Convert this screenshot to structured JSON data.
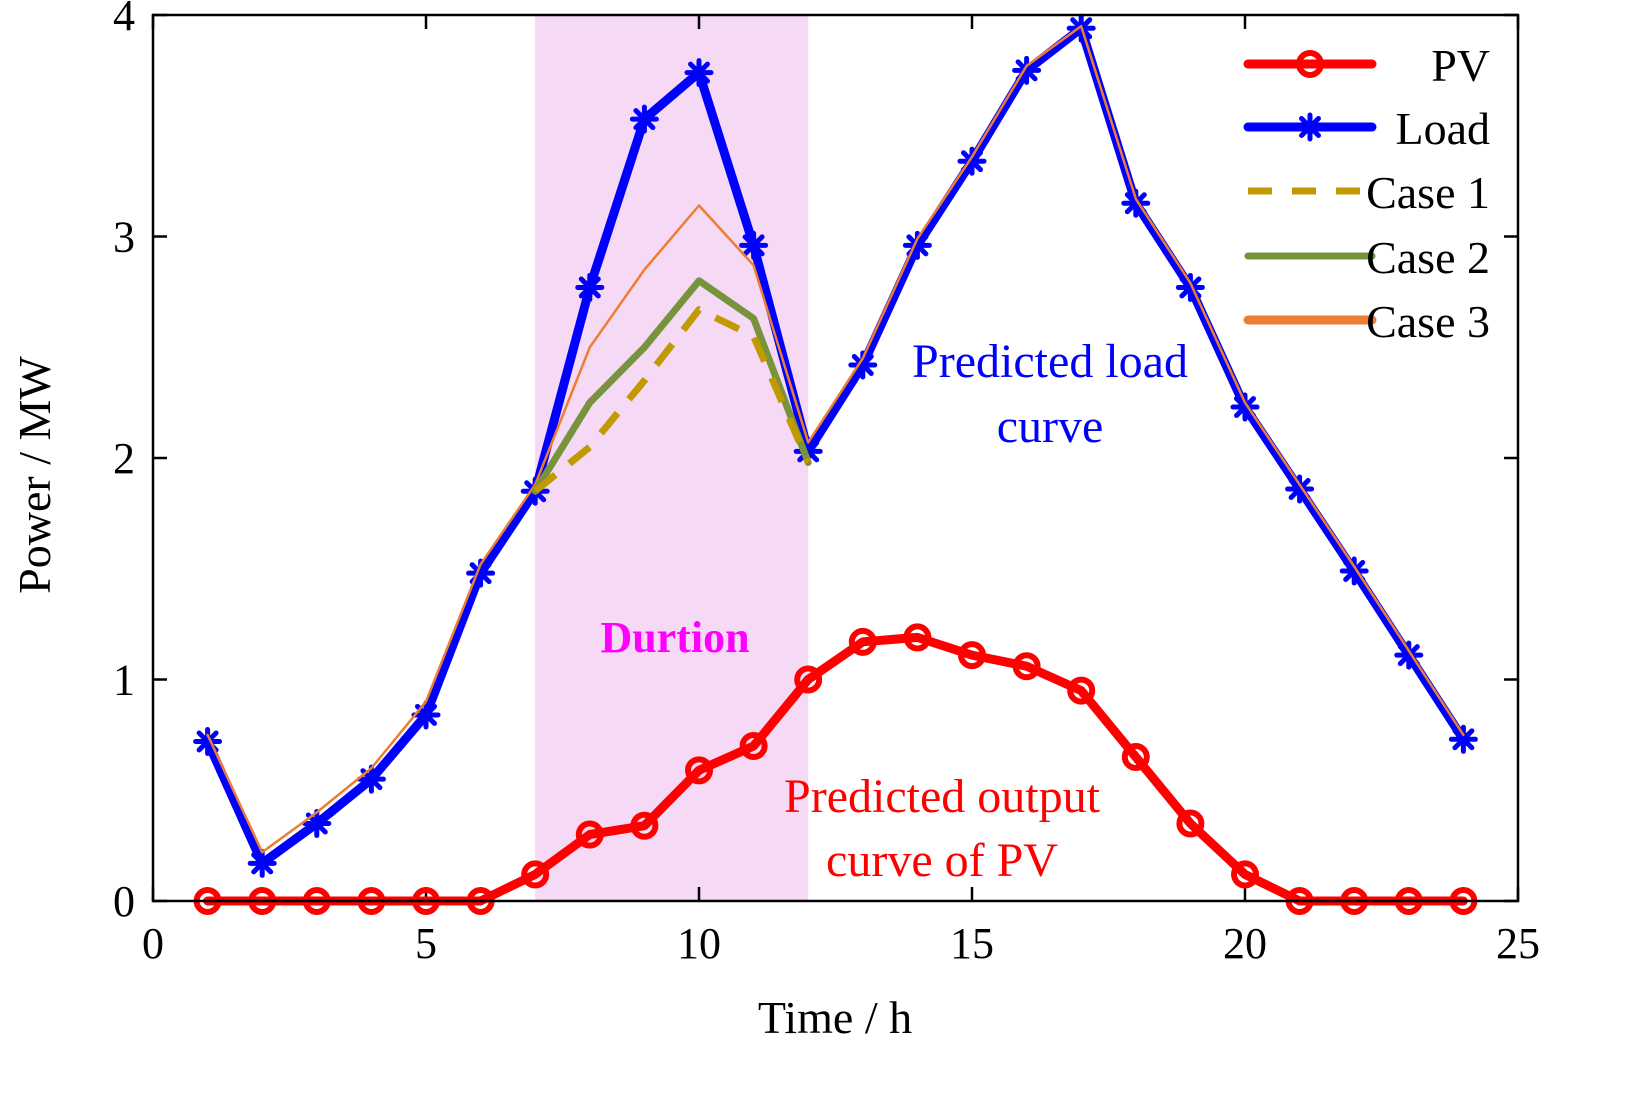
{
  "chart_data": {
    "type": "line",
    "xlabel": "Time / h",
    "ylabel": "Power / MW",
    "xlim": [
      0,
      25
    ],
    "ylim": [
      0,
      4
    ],
    "xticks": [
      0,
      5,
      10,
      15,
      20,
      25
    ],
    "yticks": [
      0,
      1,
      2,
      3,
      4
    ],
    "shaded_region": {
      "x_start": 7,
      "x_end": 12,
      "label": "Durtion",
      "color": "#f5d9f5",
      "label_color": "#ff00ff"
    },
    "legend_position": "top-right",
    "series": [
      {
        "name": "PV",
        "color": "#ff0000",
        "style": "solid",
        "marker": "circle",
        "x": [
          1,
          2,
          3,
          4,
          5,
          6,
          7,
          8,
          9,
          10,
          11,
          12,
          13,
          14,
          15,
          16,
          17,
          18,
          19,
          20,
          21,
          22,
          23,
          24
        ],
        "values": [
          0,
          0,
          0,
          0,
          0,
          0,
          0.12,
          0.3,
          0.34,
          0.59,
          0.7,
          1.0,
          1.17,
          1.19,
          1.11,
          1.06,
          0.95,
          0.65,
          0.35,
          0.12,
          0,
          0,
          0,
          0
        ]
      },
      {
        "name": "Load",
        "color": "#0000ff",
        "style": "solid",
        "marker": "asterisk",
        "x": [
          1,
          2,
          3,
          4,
          5,
          6,
          7,
          8,
          9,
          10,
          11,
          12,
          13,
          14,
          15,
          16,
          17,
          18,
          19,
          20,
          21,
          22,
          23,
          24
        ],
        "values": [
          0.72,
          0.17,
          0.35,
          0.55,
          0.84,
          1.48,
          1.85,
          2.77,
          3.53,
          3.74,
          2.96,
          2.03,
          2.42,
          2.96,
          3.34,
          3.75,
          3.94,
          3.15,
          2.77,
          2.23,
          1.86,
          1.49,
          1.11,
          0.73
        ]
      },
      {
        "name": "Case 1",
        "color": "#c09a00",
        "style": "dashed",
        "marker": "none",
        "x": [
          7,
          8,
          9,
          10,
          11,
          12
        ],
        "values": [
          1.85,
          2.05,
          2.35,
          2.67,
          2.55,
          1.98
        ]
      },
      {
        "name": "Case 2",
        "color": "#77933c",
        "style": "solid",
        "marker": "none",
        "x": [
          7,
          8,
          9,
          10,
          11,
          12
        ],
        "values": [
          1.85,
          2.25,
          2.5,
          2.8,
          2.63,
          1.98
        ]
      },
      {
        "name": "Case 3",
        "color": "#ed7d31",
        "style": "solid",
        "marker": "none",
        "x": [
          1,
          2,
          3,
          4,
          5,
          6,
          7,
          8,
          9,
          10,
          11,
          12,
          13,
          14,
          15,
          16,
          17,
          18,
          19,
          20,
          21,
          22,
          23,
          24
        ],
        "values": [
          0.75,
          0.22,
          0.4,
          0.6,
          0.9,
          1.52,
          1.88,
          2.5,
          2.85,
          3.14,
          2.87,
          2.07,
          2.45,
          2.99,
          3.36,
          3.77,
          3.95,
          3.17,
          2.79,
          2.25,
          1.88,
          1.51,
          1.13,
          0.75
        ]
      }
    ],
    "annotations": [
      {
        "text": "Predicted load",
        "color": "#0000ff"
      },
      {
        "text": "curve",
        "color": "#0000ff"
      },
      {
        "text": "Predicted output",
        "color": "#ff0000"
      },
      {
        "text": "curve of PV",
        "color": "#ff0000"
      }
    ]
  }
}
